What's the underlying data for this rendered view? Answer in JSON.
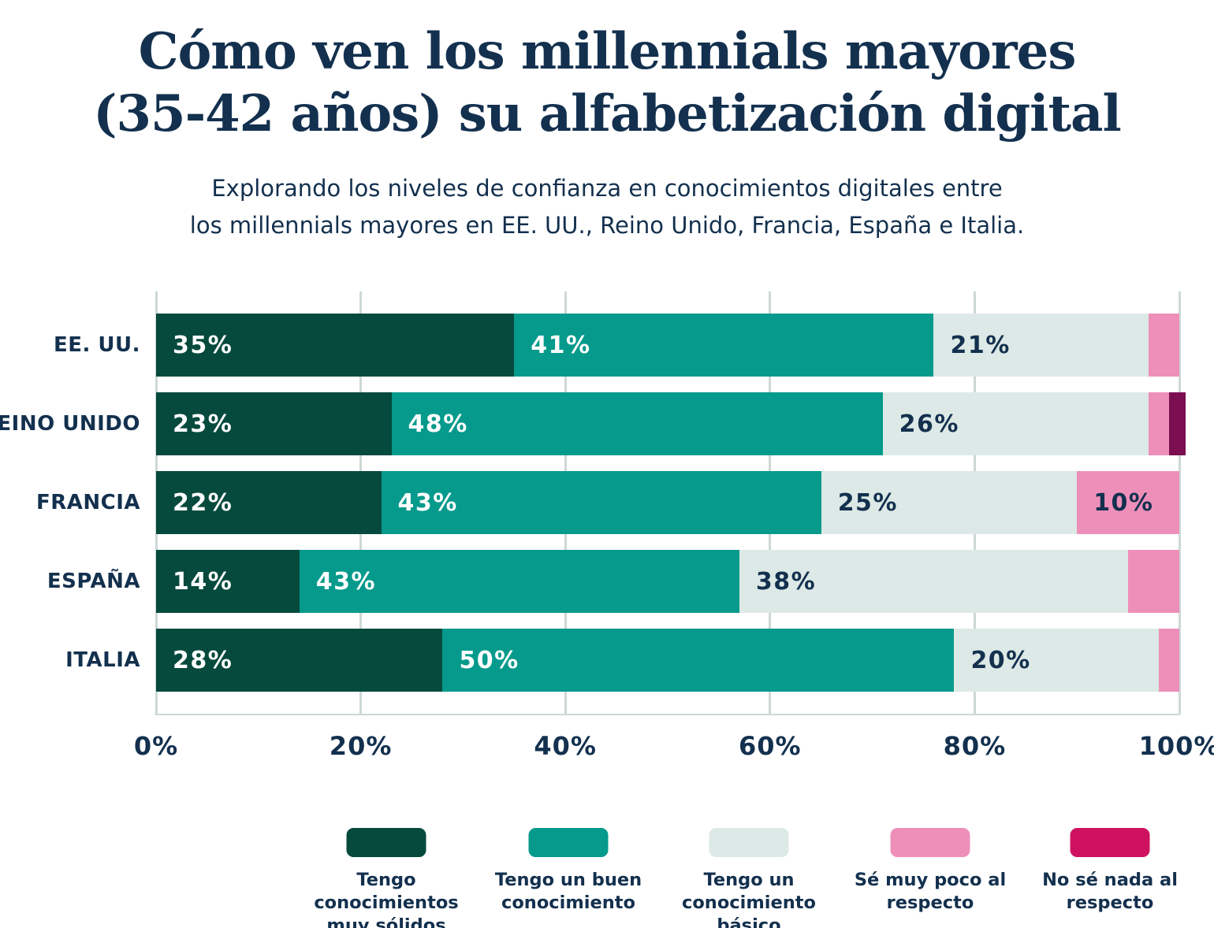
{
  "title": {
    "line1": "Cómo ven los millennials mayores",
    "line2": "(35-42 años) su alfabetización digital"
  },
  "subtitle": {
    "line1": "Explorando los niveles de confianza en conocimientos digitales entre",
    "line2": "los millennials mayores en EE. UU., Reino Unido, Francia, España e Italia."
  },
  "colors": {
    "background": "#ffffff",
    "text_navy": "#13304e",
    "gridline": "#ccd8d5",
    "solid_knowledge": "#054a3d",
    "good_knowledge": "#059a8c",
    "basic_knowledge": "#dde9e6",
    "little_knowledge": "#ee8fba",
    "no_knowledge_legend": "#ce1260",
    "no_knowledge_bar": "#7a0e51"
  },
  "chart_data": {
    "type": "bar",
    "stacked": true,
    "orientation": "horizontal",
    "unit": "%",
    "title": "Cómo ven los millennials mayores (35-42 años) su alfabetización digital",
    "categories": [
      "EE. UU.",
      "REINO UNIDO",
      "FRANCIA",
      "ESPAÑA",
      "ITALIA"
    ],
    "series": [
      {
        "name": "Tengo conocimientos muy sólidos",
        "legend_lines": [
          "Tengo conocimientos",
          "muy sólidos"
        ],
        "bar_color": "#054a3d",
        "legend_color": "#054a3d",
        "label_color": "#ffffff",
        "values": [
          35,
          23,
          22,
          14,
          28
        ]
      },
      {
        "name": "Tengo un buen conocimiento",
        "legend_lines": [
          "Tengo un buen",
          "conocimiento"
        ],
        "bar_color": "#059a8c",
        "legend_color": "#059a8c",
        "label_color": "#ffffff",
        "values": [
          41,
          48,
          43,
          43,
          50
        ]
      },
      {
        "name": "Tengo un conocimiento básico",
        "legend_lines": [
          "Tengo un",
          "conocimiento básico"
        ],
        "bar_color": "#dde9e6",
        "legend_color": "#dde9e6",
        "label_color": "#13304e",
        "values": [
          21,
          26,
          25,
          38,
          20
        ]
      },
      {
        "name": "Sé muy poco al respecto",
        "legend_lines": [
          "Sé muy poco al",
          "respecto"
        ],
        "bar_color": "#ee8fba",
        "legend_color": "#ee8fba",
        "label_color": "#13304e",
        "values": [
          3,
          2,
          10,
          5,
          2
        ]
      },
      {
        "name": "No sé nada al respecto",
        "legend_lines": [
          "No sé nada al",
          "respecto"
        ],
        "bar_color": "#7a0e51",
        "legend_color": "#ce1260",
        "label_color": "#ffffff",
        "values": [
          0,
          1,
          0,
          0,
          0
        ]
      }
    ],
    "xlim": [
      0,
      100
    ],
    "x_ticks": [
      "0%",
      "20%",
      "40%",
      "60%",
      "80%",
      "100%"
    ],
    "grid": true,
    "legend_position": "bottom",
    "value_label_format": "{v}%",
    "value_label_min": 10
  }
}
